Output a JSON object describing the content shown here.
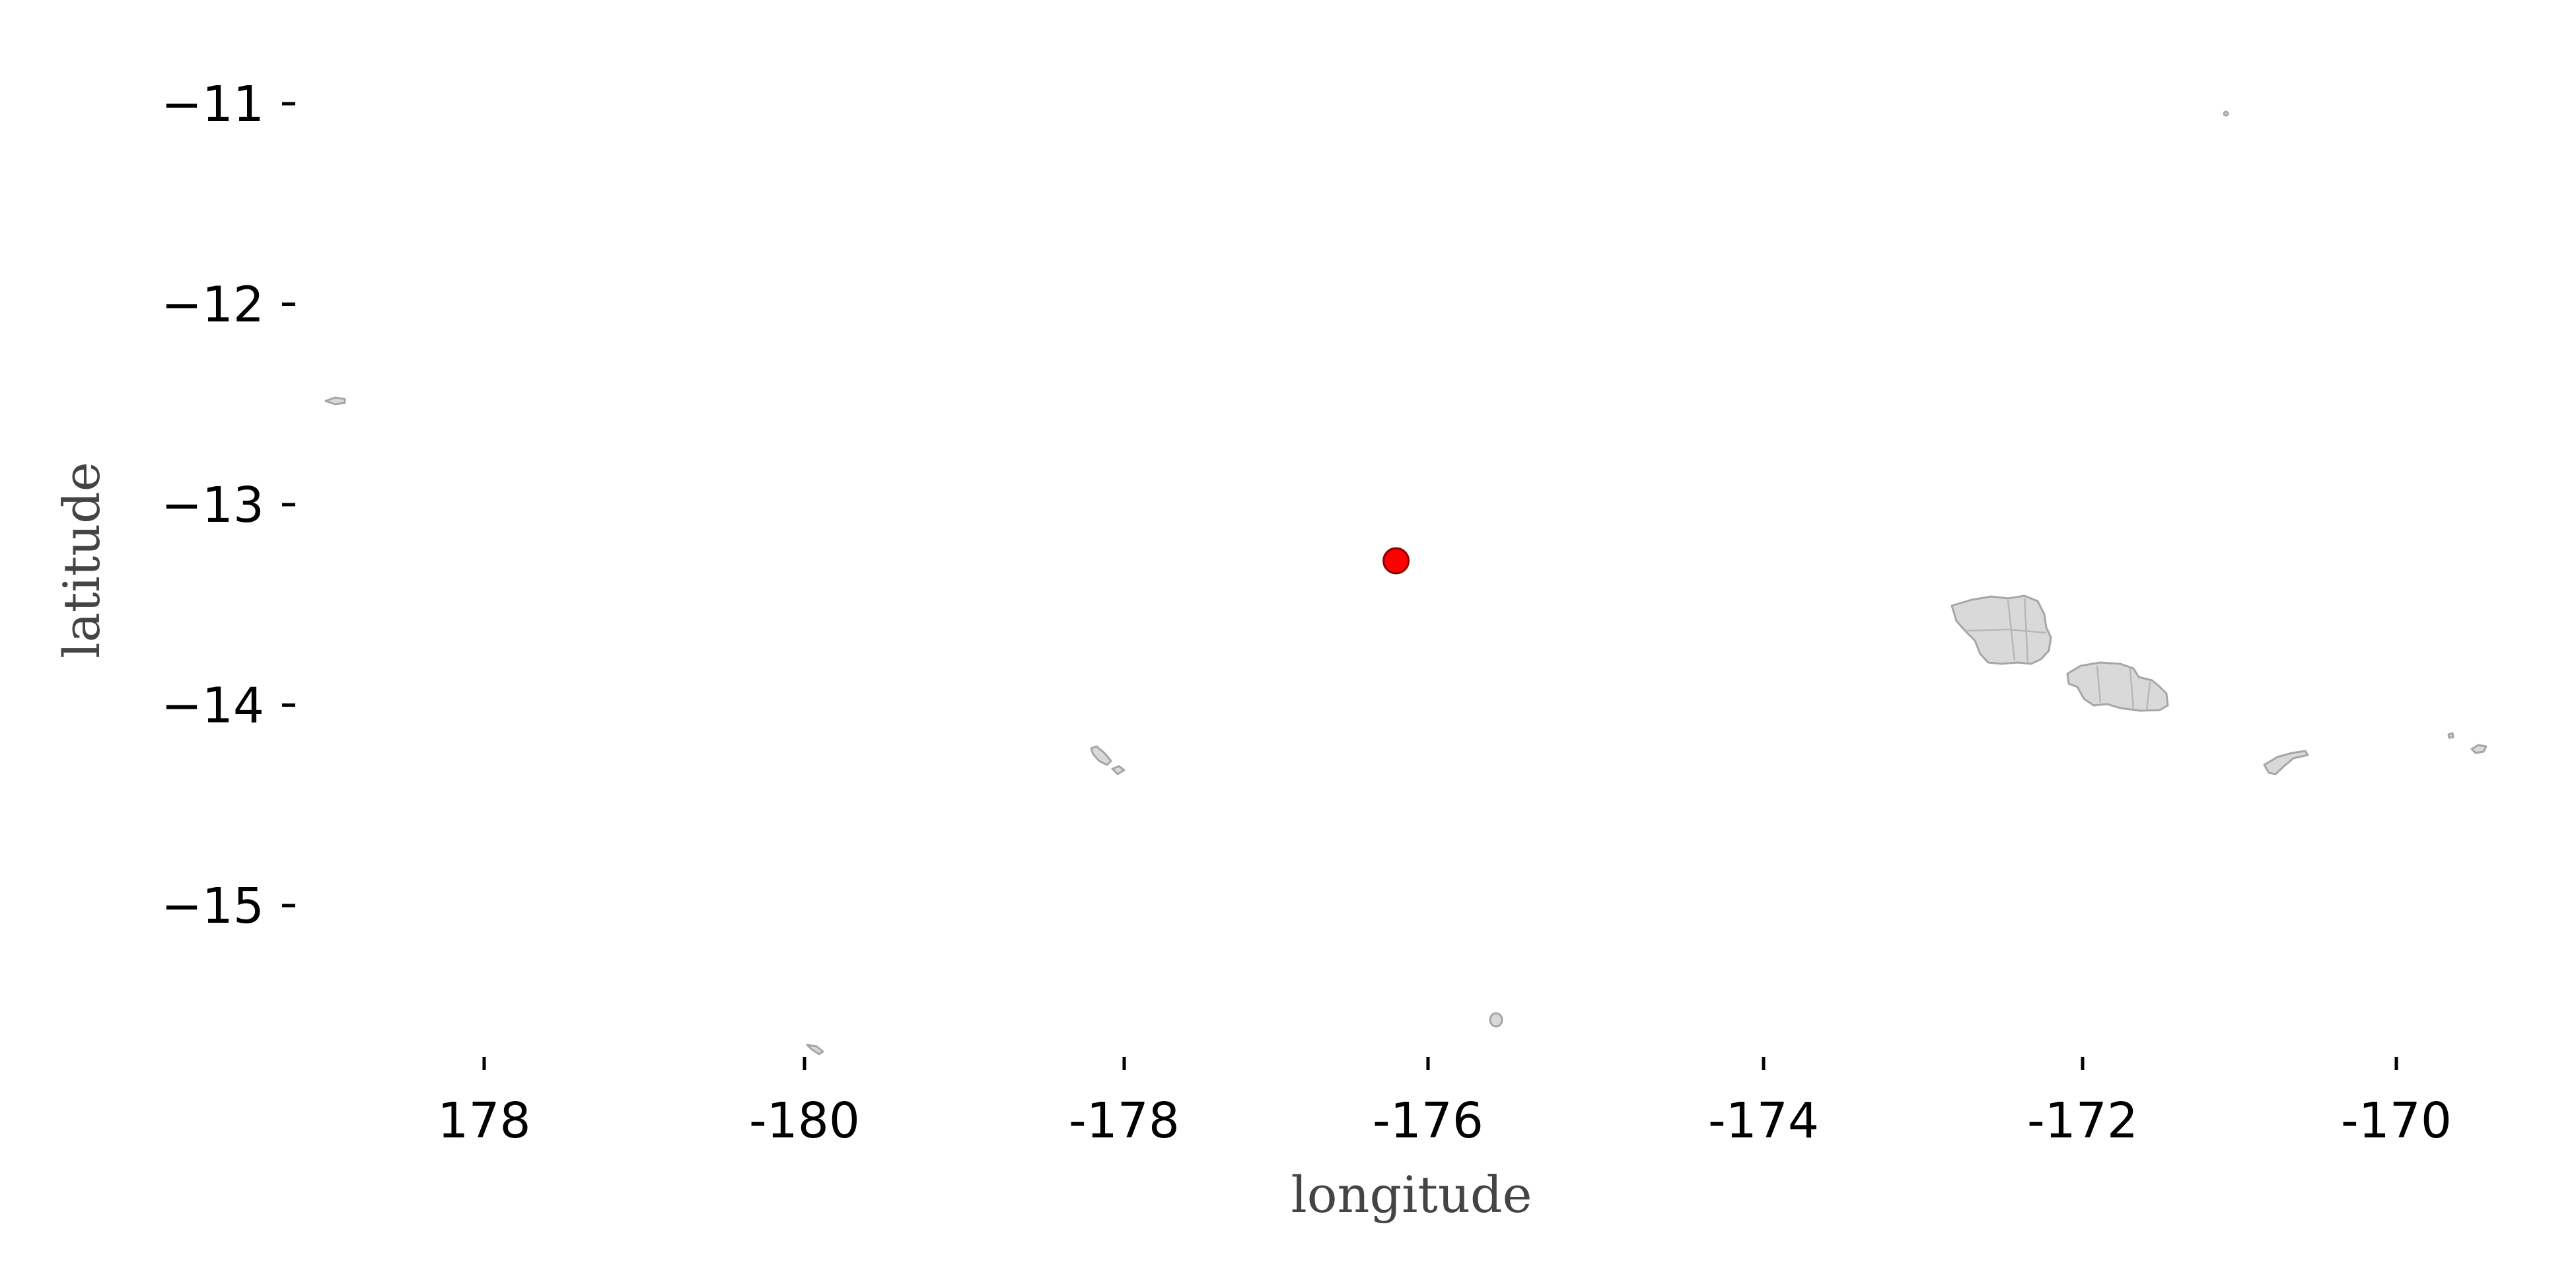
{
  "chart_data": {
    "type": "scatter",
    "xlabel": "longitude",
    "ylabel": "latitude",
    "x_ticks": [
      "178",
      "-180",
      "-178",
      "-176",
      "-174",
      "-172",
      "-170"
    ],
    "y_ticks": [
      "−11",
      "−12",
      "−13",
      "−14",
      "−15"
    ],
    "ylim": [
      -15.7,
      -10.6
    ],
    "grid": false,
    "points": [
      {
        "lon": -176.2,
        "lat": -13.28,
        "color": "#ff0000"
      }
    ],
    "land_color": "#d9d9d9",
    "land_edge_color": "#a6a6a6"
  }
}
